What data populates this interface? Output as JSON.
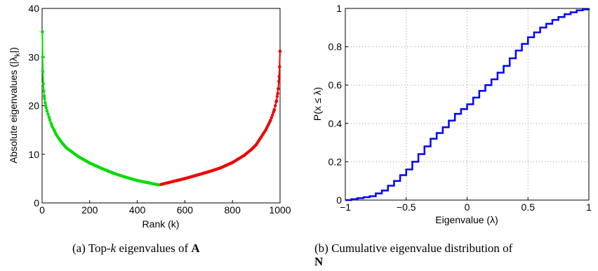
{
  "chart_data": [
    {
      "type": "scatter",
      "title": "",
      "xlabel": "Rank (k)",
      "ylabel": "Absolute eigenvalues (|λ_k|)",
      "ylabel_parts": {
        "main": "Absolute eigenvalues (|λ",
        "sub": "k",
        "end": "|)"
      },
      "xlim": [
        0,
        1000
      ],
      "ylim": [
        0,
        40
      ],
      "xticks": [
        "0",
        "200",
        "400",
        "600",
        "800",
        "1000"
      ],
      "yticks": [
        "0",
        "10",
        "20",
        "30",
        "40"
      ],
      "grid": false,
      "series": [
        {
          "color": "#00dd00",
          "x": [
            1,
            2,
            3,
            5,
            7,
            10,
            15,
            20,
            30,
            40,
            50,
            60,
            70,
            80,
            90,
            100,
            125,
            150,
            175,
            200,
            250,
            300,
            350,
            400,
            450,
            490
          ],
          "y": [
            35.2,
            30,
            27,
            24.5,
            23,
            21.5,
            20,
            19,
            17.5,
            16,
            15,
            14,
            13.3,
            12.6,
            12,
            11.4,
            10.5,
            9.6,
            8.9,
            8.2,
            7.1,
            6.1,
            5.3,
            4.6,
            4.1,
            3.7
          ]
        },
        {
          "color": "#ee0000",
          "x": [
            500,
            550,
            600,
            650,
            700,
            750,
            800,
            850,
            880,
            900,
            920,
            940,
            960,
            975,
            985,
            990,
            995,
            998,
            1000
          ],
          "y": [
            3.8,
            4.4,
            5,
            5.7,
            6.4,
            7.2,
            8.3,
            9.8,
            11,
            12,
            13.5,
            15,
            17,
            19,
            21,
            22.5,
            25,
            28,
            31.2
          ]
        }
      ]
    },
    {
      "type": "line",
      "title": "",
      "xlabel": "Eigenvalue (λ)",
      "ylabel": "P(x ≤ λ)",
      "xlim": [
        -1,
        1
      ],
      "ylim": [
        0,
        1
      ],
      "xticks": [
        "−1",
        "−0.5",
        "0",
        "0.5",
        "1"
      ],
      "yticks": [
        "0",
        "0.2",
        "0.4",
        "0.6",
        "0.8",
        "1"
      ],
      "grid": true,
      "series": [
        {
          "color": "#0000ff",
          "x": [
            -1,
            -0.9,
            -0.8,
            -0.7,
            -0.6,
            -0.5,
            -0.4,
            -0.3,
            -0.2,
            -0.1,
            0,
            0.1,
            0.2,
            0.3,
            0.4,
            0.5,
            0.6,
            0.7,
            0.8,
            0.9,
            1
          ],
          "y": [
            0,
            0.01,
            0.02,
            0.05,
            0.1,
            0.16,
            0.24,
            0.32,
            0.38,
            0.45,
            0.5,
            0.57,
            0.63,
            0.7,
            0.78,
            0.85,
            0.9,
            0.94,
            0.97,
            0.99,
            1
          ]
        }
      ]
    }
  ],
  "captions": {
    "a_prefix": "(a)  Top-",
    "a_k": "k",
    "a_mid": " eigenvalues of ",
    "a_bold": "A",
    "b_line1": "(b)  Cumulative  eigenvalue  distribution  of",
    "b_bold": "N"
  }
}
